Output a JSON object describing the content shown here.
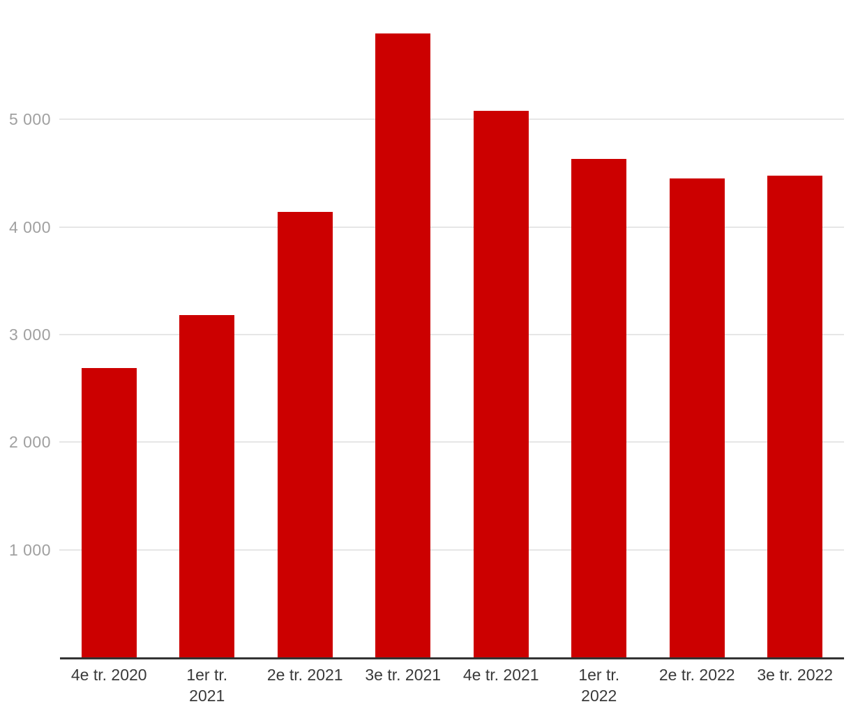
{
  "chart_data": {
    "type": "bar",
    "title": "",
    "xlabel": "",
    "ylabel": "",
    "categories": [
      "4e tr. 2020",
      "1er tr.\n2021",
      "2e tr. 2021",
      "3e tr. 2021",
      "4e tr. 2021",
      "1er tr.\n2022",
      "2e tr. 2022",
      "3e tr. 2022"
    ],
    "values": [
      2690,
      3180,
      4140,
      5800,
      5080,
      4630,
      4450,
      4480
    ],
    "ylim": [
      0,
      6110
    ],
    "yticks": [
      {
        "value": 1000,
        "label": "1 000"
      },
      {
        "value": 2000,
        "label": "2 000"
      },
      {
        "value": 3000,
        "label": "3 000"
      },
      {
        "value": 4000,
        "label": "4 000"
      },
      {
        "value": 5000,
        "label": "5 000"
      }
    ],
    "grid": true,
    "legend_position": "none",
    "colors": {
      "bar": "#cc0000",
      "gridline": "#e6e6e6",
      "axis_line": "#333333",
      "y_tick_text": "#a0a0a0",
      "x_tick_text": "#3a3a3a",
      "background": "#ffffff"
    }
  }
}
